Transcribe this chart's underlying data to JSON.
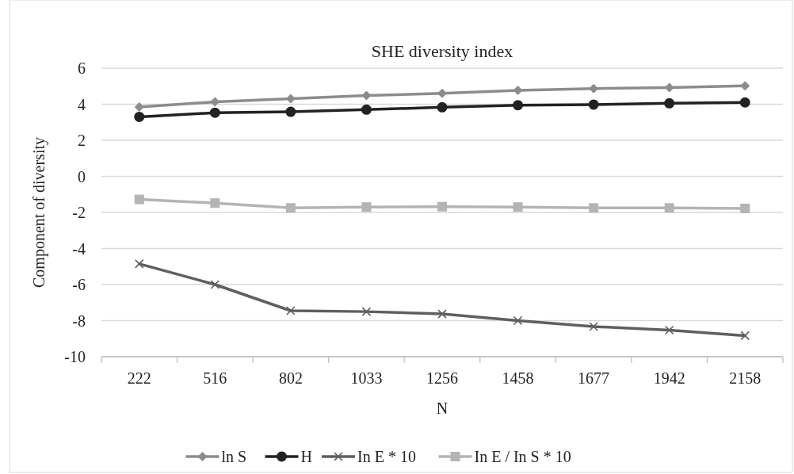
{
  "chart_data": {
    "type": "line",
    "title": "SHE diversity index",
    "xlabel": "N",
    "ylabel": "Component of diversity",
    "categories": [
      "222",
      "516",
      "802",
      "1033",
      "1256",
      "1458",
      "1677",
      "1942",
      "2158"
    ],
    "ylim": [
      -10,
      6
    ],
    "yticks": [
      -10,
      -8,
      -6,
      -4,
      -2,
      0,
      2,
      4,
      6
    ],
    "grid": "y",
    "legend": "bottom",
    "line_style": "solid",
    "series": [
      {
        "name": "ln S",
        "color": "#8c8c8c",
        "marker": "diamond",
        "values": [
          3.85,
          4.13,
          4.31,
          4.48,
          4.6,
          4.77,
          4.87,
          4.92,
          5.02
        ]
      },
      {
        "name": "H",
        "color": "#222222",
        "marker": "circle",
        "values": [
          3.3,
          3.53,
          3.58,
          3.7,
          3.83,
          3.95,
          3.98,
          4.05,
          4.1
        ]
      },
      {
        "name": "In E * 10",
        "color": "#5f5f5f",
        "marker": "cross",
        "values": [
          -4.85,
          -6.0,
          -7.45,
          -7.5,
          -7.63,
          -8.0,
          -8.33,
          -8.53,
          -8.83
        ]
      },
      {
        "name": "In E / In S * 10",
        "color": "#b4b4b4",
        "marker": "square",
        "values": [
          -1.28,
          -1.48,
          -1.75,
          -1.7,
          -1.68,
          -1.7,
          -1.75,
          -1.75,
          -1.78
        ]
      }
    ]
  }
}
